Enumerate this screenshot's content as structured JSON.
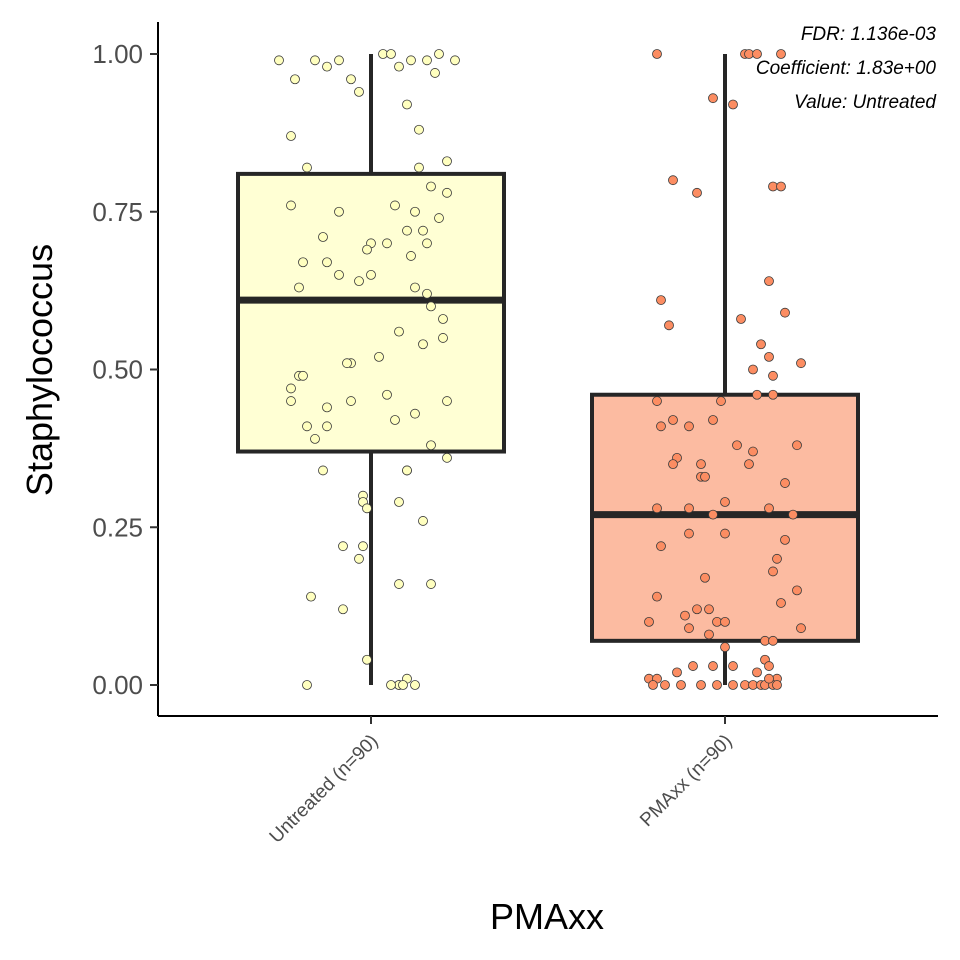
{
  "chart_data": {
    "type": "box",
    "xlabel": "PMAxx",
    "ylabel": "Staphylococcus",
    "ylim": [
      -0.05,
      1.05
    ],
    "yticks": [
      0.0,
      0.25,
      0.5,
      0.75,
      1.0
    ],
    "ytick_labels": [
      "0.00",
      "0.25",
      "0.50",
      "0.75",
      "1.00"
    ],
    "grid": false,
    "annotations": [
      "FDR: 1.136e-03",
      "Coefficient: 1.83e+00",
      "Value: Untreated"
    ],
    "groups": [
      {
        "label": "Untreated (n=90)",
        "color": "#ffffd4",
        "point_color": "#ffffbf",
        "min": 0.0,
        "q1": 0.37,
        "median": 0.61,
        "q3": 0.81,
        "max": 1.0,
        "points": [
          [
            -0.23,
            0.99
          ],
          [
            -0.19,
            0.96
          ],
          [
            -0.14,
            0.99
          ],
          [
            -0.11,
            0.98
          ],
          [
            -0.08,
            0.99
          ],
          [
            -0.05,
            0.96
          ],
          [
            -0.03,
            0.94
          ],
          [
            0.03,
            1.0
          ],
          [
            0.05,
            1.0
          ],
          [
            0.07,
            0.98
          ],
          [
            0.1,
            0.99
          ],
          [
            0.14,
            0.99
          ],
          [
            0.16,
            0.97
          ],
          [
            0.17,
            1.0
          ],
          [
            0.21,
            0.99
          ],
          [
            -0.2,
            0.87
          ],
          [
            0.12,
            0.88
          ],
          [
            0.09,
            0.92
          ],
          [
            -0.16,
            0.82
          ],
          [
            0.12,
            0.82
          ],
          [
            0.19,
            0.83
          ],
          [
            -0.2,
            0.76
          ],
          [
            -0.08,
            0.75
          ],
          [
            0.06,
            0.76
          ],
          [
            0.11,
            0.75
          ],
          [
            0.15,
            0.79
          ],
          [
            0.19,
            0.78
          ],
          [
            0.17,
            0.74
          ],
          [
            -0.12,
            0.71
          ],
          [
            0.0,
            0.7
          ],
          [
            0.04,
            0.7
          ],
          [
            0.09,
            0.72
          ],
          [
            0.13,
            0.72
          ],
          [
            -0.17,
            0.67
          ],
          [
            -0.11,
            0.67
          ],
          [
            -0.01,
            0.69
          ],
          [
            0.1,
            0.68
          ],
          [
            0.14,
            0.7
          ],
          [
            -0.18,
            0.63
          ],
          [
            -0.08,
            0.65
          ],
          [
            0.0,
            0.65
          ],
          [
            0.11,
            0.63
          ],
          [
            0.14,
            0.62
          ],
          [
            0.15,
            0.6
          ],
          [
            -0.03,
            0.64
          ],
          [
            0.18,
            0.58
          ],
          [
            0.07,
            0.56
          ],
          [
            0.18,
            0.55
          ],
          [
            -0.05,
            0.51
          ],
          [
            0.02,
            0.52
          ],
          [
            -0.06,
            0.51
          ],
          [
            0.13,
            0.54
          ],
          [
            -0.18,
            0.49
          ],
          [
            -0.17,
            0.49
          ],
          [
            -0.2,
            0.47
          ],
          [
            -0.2,
            0.45
          ],
          [
            -0.11,
            0.44
          ],
          [
            -0.05,
            0.45
          ],
          [
            0.04,
            0.46
          ],
          [
            0.11,
            0.43
          ],
          [
            0.19,
            0.45
          ],
          [
            -0.16,
            0.41
          ],
          [
            -0.14,
            0.39
          ],
          [
            -0.11,
            0.41
          ],
          [
            0.06,
            0.42
          ],
          [
            0.15,
            0.38
          ],
          [
            0.19,
            0.36
          ],
          [
            -0.12,
            0.34
          ],
          [
            0.09,
            0.34
          ],
          [
            0.09,
            0.34
          ],
          [
            -0.02,
            0.3
          ],
          [
            -0.02,
            0.29
          ],
          [
            -0.01,
            0.28
          ],
          [
            0.07,
            0.29
          ],
          [
            0.13,
            0.26
          ],
          [
            -0.07,
            0.22
          ],
          [
            -0.02,
            0.22
          ],
          [
            -0.03,
            0.2
          ],
          [
            0.07,
            0.16
          ],
          [
            0.15,
            0.16
          ],
          [
            -0.15,
            0.14
          ],
          [
            -0.07,
            0.12
          ],
          [
            -0.01,
            0.04
          ],
          [
            -0.16,
            0.0
          ],
          [
            0.07,
            0.0
          ],
          [
            0.07,
            0.0
          ],
          [
            0.09,
            0.01
          ],
          [
            0.11,
            0.0
          ],
          [
            0.05,
            0.0
          ],
          [
            0.08,
            0.0
          ]
        ]
      },
      {
        "label": "PMAxx (n=90)",
        "color": "#fcbba1",
        "point_color": "#fc8d62",
        "min": 0.0,
        "q1": 0.07,
        "median": 0.27,
        "q3": 0.46,
        "max": 1.0,
        "points": [
          [
            -0.17,
            1.0
          ],
          [
            0.05,
            1.0
          ],
          [
            0.06,
            1.0
          ],
          [
            0.08,
            1.0
          ],
          [
            0.14,
            1.0
          ],
          [
            -0.03,
            0.93
          ],
          [
            0.02,
            0.92
          ],
          [
            -0.13,
            0.8
          ],
          [
            -0.07,
            0.78
          ],
          [
            0.12,
            0.79
          ],
          [
            0.14,
            0.79
          ],
          [
            0.11,
            0.64
          ],
          [
            -0.16,
            0.61
          ],
          [
            -0.14,
            0.57
          ],
          [
            0.04,
            0.58
          ],
          [
            0.15,
            0.59
          ],
          [
            0.09,
            0.54
          ],
          [
            0.11,
            0.52
          ],
          [
            0.19,
            0.51
          ],
          [
            0.07,
            0.5
          ],
          [
            0.12,
            0.49
          ],
          [
            -0.17,
            0.45
          ],
          [
            -0.01,
            0.45
          ],
          [
            0.08,
            0.46
          ],
          [
            0.12,
            0.46
          ],
          [
            -0.13,
            0.42
          ],
          [
            -0.09,
            0.41
          ],
          [
            -0.16,
            0.41
          ],
          [
            -0.03,
            0.42
          ],
          [
            0.03,
            0.38
          ],
          [
            0.07,
            0.37
          ],
          [
            0.18,
            0.38
          ],
          [
            -0.12,
            0.36
          ],
          [
            -0.13,
            0.35
          ],
          [
            -0.06,
            0.35
          ],
          [
            0.06,
            0.35
          ],
          [
            0.15,
            0.32
          ],
          [
            -0.06,
            0.33
          ],
          [
            -0.05,
            0.33
          ],
          [
            0.0,
            0.29
          ],
          [
            -0.17,
            0.28
          ],
          [
            -0.09,
            0.28
          ],
          [
            -0.03,
            0.27
          ],
          [
            0.0,
            0.24
          ],
          [
            0.11,
            0.28
          ],
          [
            0.17,
            0.27
          ],
          [
            0.15,
            0.23
          ],
          [
            -0.16,
            0.22
          ],
          [
            -0.09,
            0.24
          ],
          [
            0.13,
            0.2
          ],
          [
            -0.05,
            0.17
          ],
          [
            0.12,
            0.18
          ],
          [
            0.18,
            0.15
          ],
          [
            -0.17,
            0.14
          ],
          [
            0.14,
            0.13
          ],
          [
            -0.07,
            0.12
          ],
          [
            -0.1,
            0.11
          ],
          [
            -0.04,
            0.12
          ],
          [
            -0.19,
            0.1
          ],
          [
            -0.02,
            0.1
          ],
          [
            0.0,
            0.1
          ],
          [
            0.19,
            0.09
          ],
          [
            -0.09,
            0.09
          ],
          [
            -0.04,
            0.08
          ],
          [
            0.1,
            0.07
          ],
          [
            0.12,
            0.07
          ],
          [
            0.0,
            0.06
          ],
          [
            0.1,
            0.04
          ],
          [
            -0.19,
            0.01
          ],
          [
            -0.17,
            0.01
          ],
          [
            -0.12,
            0.02
          ],
          [
            -0.08,
            0.03
          ],
          [
            -0.03,
            0.03
          ],
          [
            0.02,
            0.03
          ],
          [
            0.11,
            0.03
          ],
          [
            0.13,
            0.01
          ],
          [
            0.08,
            0.02
          ],
          [
            -0.18,
            0.0
          ],
          [
            -0.15,
            0.0
          ],
          [
            -0.11,
            0.0
          ],
          [
            -0.06,
            0.0
          ],
          [
            -0.02,
            0.0
          ],
          [
            0.02,
            0.0
          ],
          [
            0.05,
            0.0
          ],
          [
            0.07,
            0.0
          ],
          [
            0.09,
            0.0
          ],
          [
            0.1,
            0.0
          ],
          [
            0.12,
            0.0
          ],
          [
            0.13,
            0.0
          ],
          [
            0.11,
            0.01
          ]
        ]
      }
    ]
  }
}
